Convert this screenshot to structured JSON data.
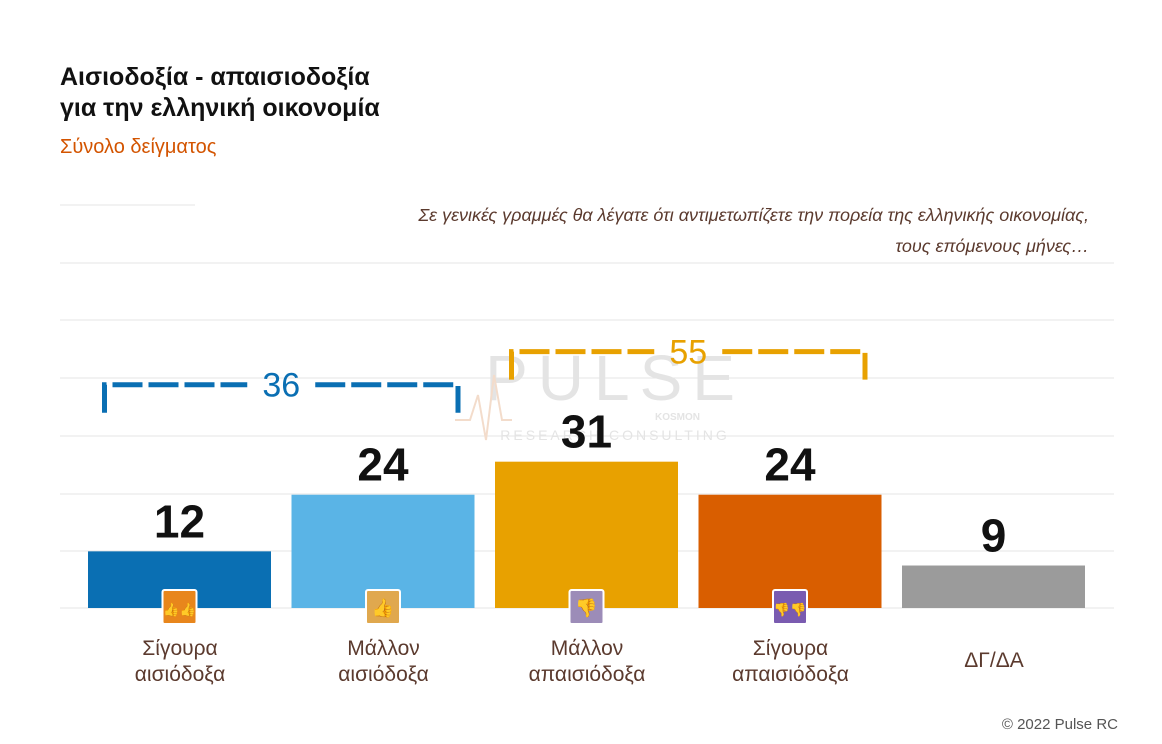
{
  "header": {
    "title_line1": "Αισιοδοξία - απαισιοδοξία",
    "title_line2": "για την ελληνική οικονομία",
    "subtitle": "Σύνολο δείγματος"
  },
  "question": {
    "line1": "Σε γενικές γραμμές θα λέγατε ότι αντιμετωπίζετε την πορεία της ελληνικής οικονομίας,",
    "line2": "τους επόμενους μήνες…"
  },
  "watermark": {
    "word": "PULSE",
    "tagline": "RESEARCH CONSULTING",
    "brand": "KOSMON"
  },
  "footer": "© 2022 Pulse RC",
  "chart_data": {
    "type": "bar",
    "categories": [
      [
        "Σίγουρα",
        "αισιόδοξα"
      ],
      [
        "Μάλλον",
        "αισιόδοξα"
      ],
      [
        "Μάλλον",
        "απαισιόδοξα"
      ],
      [
        "Σίγουρα",
        "απαισιόδοξα"
      ],
      [
        "ΔΓ/ΔΑ"
      ]
    ],
    "values": [
      12,
      24,
      31,
      24,
      9
    ],
    "colors": [
      "#0a6fb3",
      "#5ab4e6",
      "#e8a100",
      "#d95e00",
      "#9b9b9b"
    ],
    "icons": [
      "two-thumbs-up-icon",
      "thumb-up-icon",
      "thumb-down-icon",
      "two-thumbs-down-icon",
      ""
    ],
    "icon_colors": [
      "#e8861c",
      "#e0a84e",
      "#9c8cb8",
      "#7a5bb0",
      ""
    ],
    "ylim": [
      0,
      40
    ],
    "grid": true,
    "brackets": [
      {
        "from": 0,
        "to": 1,
        "value": "36",
        "color": "#0a6fb3"
      },
      {
        "from": 2,
        "to": 3,
        "value": "55",
        "color": "#e8a100"
      }
    ]
  }
}
